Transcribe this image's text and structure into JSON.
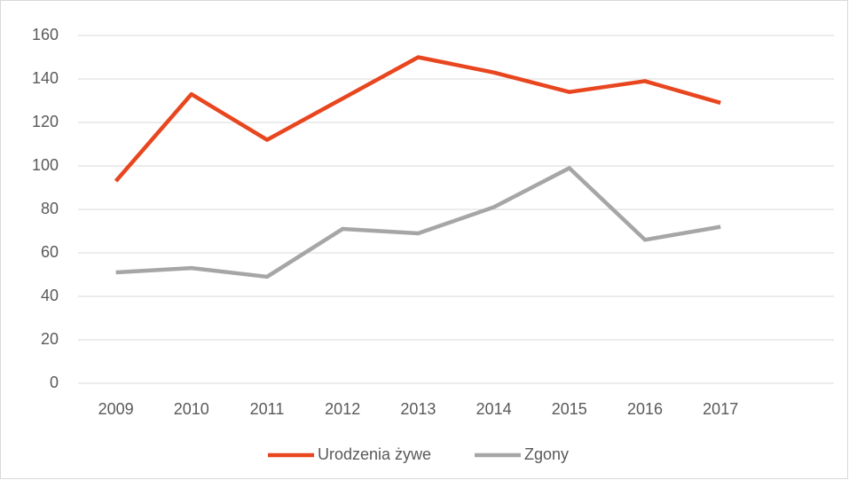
{
  "chart_data": {
    "type": "line",
    "categories": [
      "2009",
      "2010",
      "2011",
      "2012",
      "2013",
      "2014",
      "2015",
      "2016",
      "2017",
      null
    ],
    "series": [
      {
        "name": "Urodzenia żywe",
        "color": "#e8461f",
        "values": [
          93,
          133,
          112,
          131,
          150,
          143,
          134,
          139,
          129,
          null
        ]
      },
      {
        "name": "Zgony",
        "color": "#a6a6a6",
        "values": [
          51,
          53,
          49,
          71,
          69,
          81,
          99,
          66,
          72,
          null
        ]
      }
    ],
    "ylim": [
      0,
      160
    ],
    "yticks": [
      0,
      20,
      40,
      60,
      80,
      100,
      120,
      140,
      160
    ],
    "grid": true,
    "legend": "bottom"
  }
}
